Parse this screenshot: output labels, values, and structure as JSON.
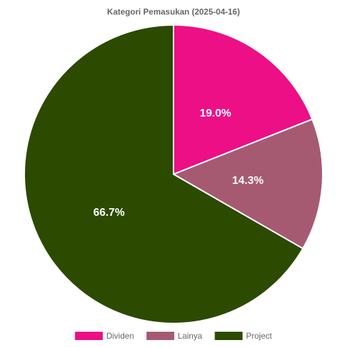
{
  "chart_data": {
    "type": "pie",
    "title": "Kategori Pemasukan (2025-04-16)",
    "categories": [
      "Dividen",
      "Lainya",
      "Project"
    ],
    "values": [
      19.0,
      14.3,
      66.7
    ],
    "labels": [
      "19.0%",
      "14.3%",
      "66.7%"
    ],
    "colors": [
      "#ec0f85",
      "#a65a72",
      "#2c4a00"
    ],
    "legend_position": "bottom",
    "start_angle_deg": 0,
    "direction": "clockwise"
  }
}
